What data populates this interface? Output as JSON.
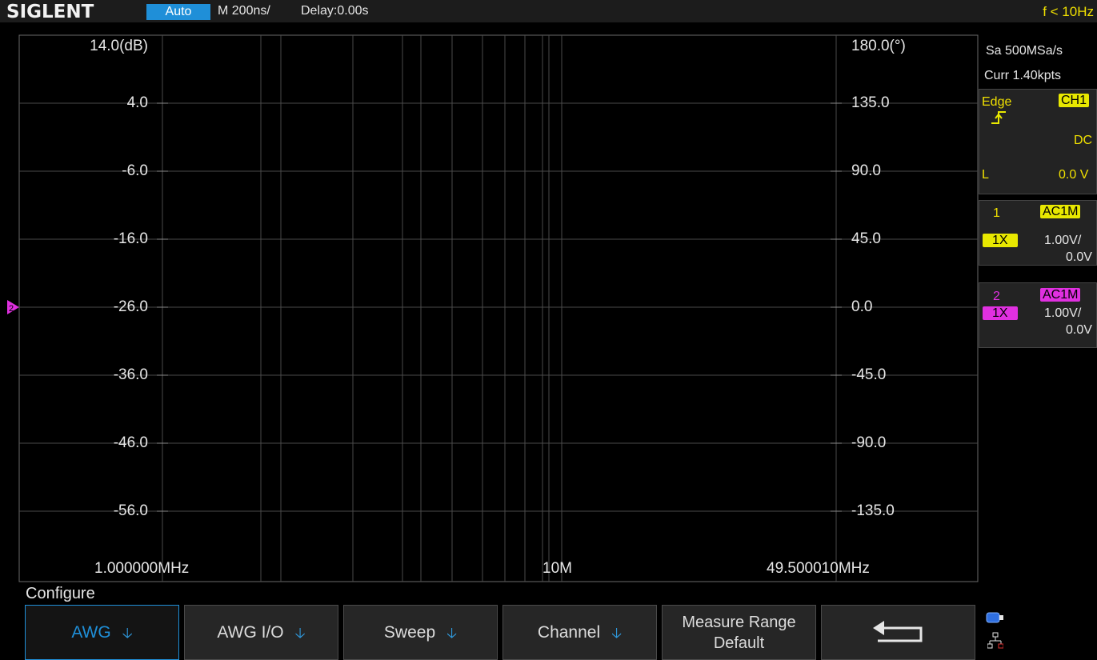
{
  "topbar": {
    "logo": "SIGLENT",
    "mode": "Auto",
    "timebase": "M 200ns/",
    "delay": "Delay:0.00s",
    "trigger_freq": "f < 10Hz"
  },
  "plot": {
    "left_unit_label": "14.0(dB)",
    "left_ticks": [
      "4.0",
      "-6.0",
      "-16.0",
      "-26.0",
      "-36.0",
      "-46.0",
      "-56.0"
    ],
    "right_unit_label": "180.0(°)",
    "right_ticks": [
      "135.0",
      "90.0",
      "45.0",
      "0.0",
      "-45.0",
      "-90.0",
      "-135.0"
    ],
    "x_start": "1.000000MHz",
    "x_mid": "10M",
    "x_end": "49.500010MHz",
    "channel2_marker": "2"
  },
  "right_panel": {
    "sample_rate": "Sa 500MSa/s",
    "curr_points": "Curr 1.40kpts",
    "trigger": {
      "type": "Edge",
      "source": "CH1",
      "slope_icon": "rising-edge-icon",
      "coupling": "DC",
      "level_label": "L",
      "level_value": "0.0 V"
    },
    "channels": [
      {
        "num": "1",
        "coupling": "AC1M",
        "probe": "1X",
        "scale": "1.00V/",
        "offset": "0.0V",
        "color": "#e8e800"
      },
      {
        "num": "2",
        "coupling": "AC1M",
        "probe": "1X",
        "scale": "1.00V/",
        "offset": "0.0V",
        "color": "#e030e0"
      }
    ]
  },
  "menu": {
    "title": "Configure",
    "softkeys": [
      {
        "label": "AWG"
      },
      {
        "label": "AWG I/O"
      },
      {
        "label": "Sweep"
      },
      {
        "label": "Channel"
      },
      {
        "line1": "Measure Range",
        "line2": "Default"
      },
      {
        "icon": "return-arrow-icon"
      }
    ],
    "status_icons": [
      "usb-icon",
      "network-icon"
    ]
  }
}
